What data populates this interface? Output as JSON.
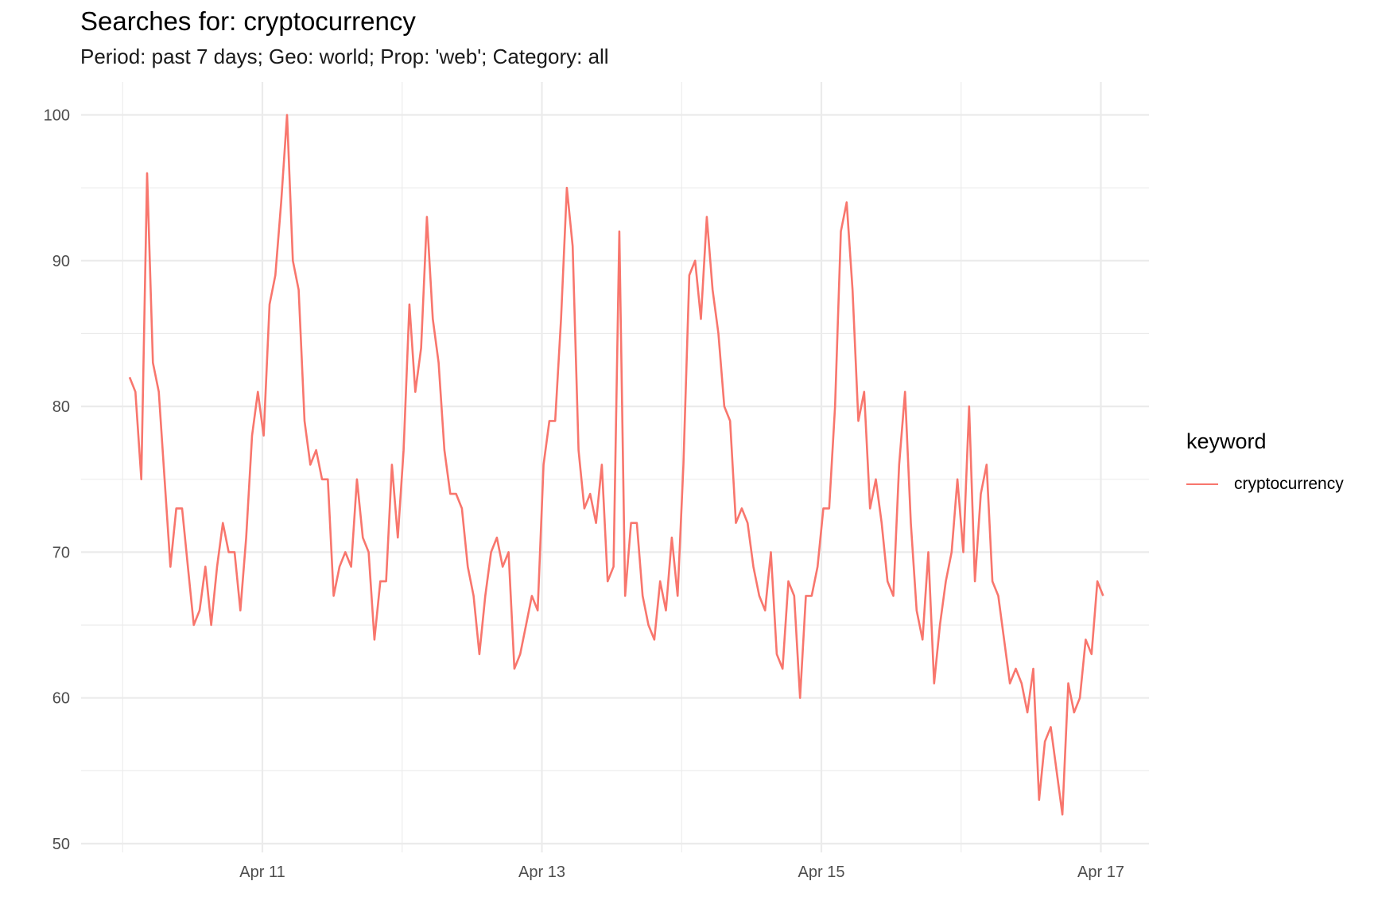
{
  "chart_data": {
    "type": "line",
    "title": "Searches for: cryptocurrency",
    "subtitle": "Period: past 7 days; Geo: world; Prop: 'web'; Category: all",
    "xlabel": "",
    "ylabel": "",
    "ylim": [
      50,
      102
    ],
    "yticks": [
      50,
      60,
      70,
      80,
      90,
      100
    ],
    "xticks": [
      "Apr 11",
      "Apr 13",
      "Apr 15",
      "Apr 17"
    ],
    "grid": true,
    "legend_title": "keyword",
    "legend_position": "right",
    "colors": {
      "series": "#f8766d",
      "grid": "#ebebeb",
      "tick_text": "#4d4d4d"
    },
    "x_start": "Apr 10 03:00",
    "x_step_hours": 1,
    "series": [
      {
        "name": "cryptocurrency",
        "values": [
          82,
          81,
          75,
          96,
          83,
          81,
          75,
          69,
          73,
          73,
          69,
          65,
          66,
          69,
          65,
          69,
          72,
          70,
          70,
          66,
          71,
          78,
          81,
          78,
          87,
          89,
          94,
          100,
          90,
          88,
          79,
          76,
          77,
          75,
          75,
          67,
          69,
          70,
          69,
          75,
          71,
          70,
          64,
          68,
          68,
          76,
          71,
          77,
          87,
          81,
          84,
          93,
          86,
          83,
          77,
          74,
          74,
          73,
          69,
          67,
          63,
          67,
          70,
          71,
          69,
          70,
          62,
          63,
          65,
          67,
          66,
          76,
          79,
          79,
          86,
          95,
          91,
          77,
          73,
          74,
          72,
          76,
          68,
          69,
          92,
          67,
          72,
          72,
          67,
          65,
          64,
          68,
          66,
          71,
          67,
          76,
          89,
          90,
          86,
          93,
          88,
          85,
          80,
          79,
          72,
          73,
          72,
          69,
          67,
          66,
          70,
          63,
          62,
          68,
          67,
          60,
          67,
          67,
          69,
          73,
          73,
          80,
          92,
          94,
          88,
          79,
          81,
          73,
          75,
          72,
          68,
          67,
          76,
          81,
          72,
          66,
          64,
          70,
          61,
          65,
          68,
          70,
          75,
          70,
          80,
          68,
          74,
          76,
          68,
          67,
          64,
          61,
          62,
          61,
          59,
          62,
          53,
          57,
          58,
          55,
          52,
          61,
          59,
          60,
          64,
          63,
          68,
          67
        ]
      }
    ]
  }
}
